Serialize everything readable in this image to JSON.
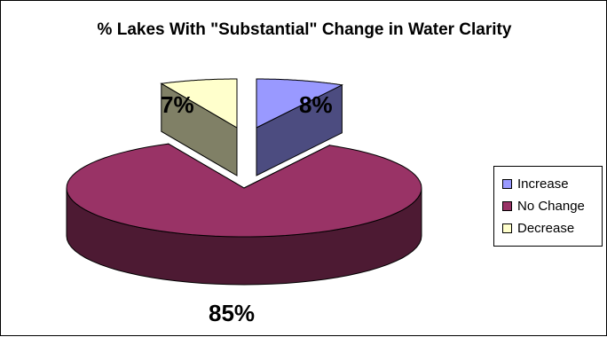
{
  "chart_data": {
    "type": "pie",
    "subtype": "3d-exploded",
    "title": "% Lakes With \"Substantial\" Change in Water Clarity",
    "categories": [
      "Increase",
      "No Change",
      "Decrease"
    ],
    "values": [
      8,
      85,
      7
    ],
    "data_labels": [
      "8%",
      "85%",
      "7%"
    ],
    "colors": {
      "Increase": {
        "top": "#9999ff",
        "side": "#4c4c80"
      },
      "No Change": {
        "top": "#993366",
        "side": "#4d1a33"
      },
      "Decrease": {
        "top": "#ffffcc",
        "side": "#808066"
      }
    },
    "legend": {
      "position": "right",
      "entries": [
        "Increase",
        "No Change",
        "Decrease"
      ]
    }
  }
}
